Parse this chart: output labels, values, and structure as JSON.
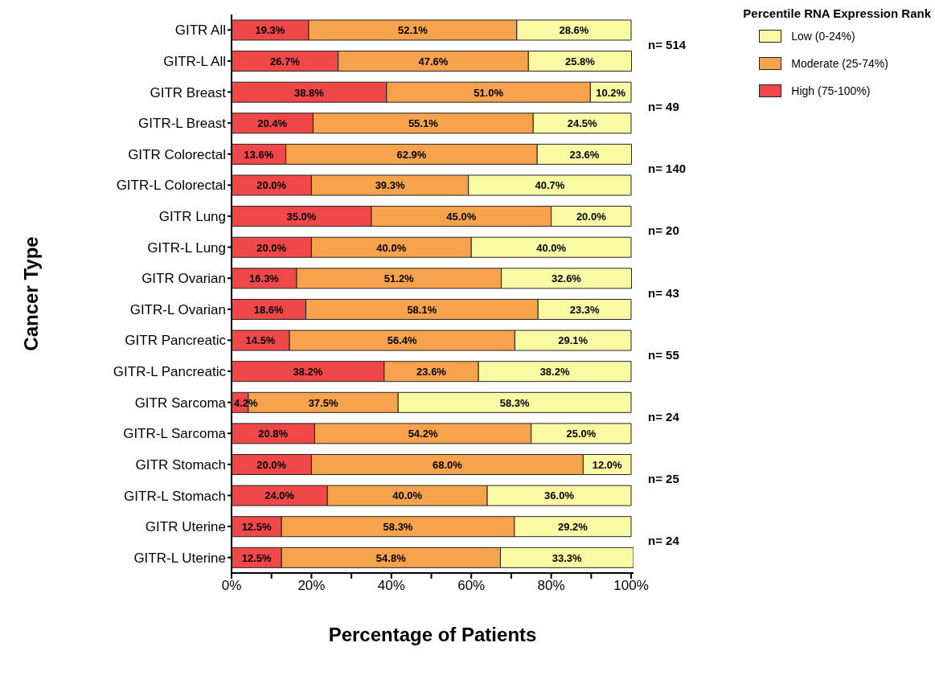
{
  "chart_data": {
    "type": "bar",
    "orientation": "horizontal",
    "stacked": true,
    "xlabel": "Percentage of Patients",
    "ylabel": "Cancer Type",
    "legend_title": "Percentile RNA Expression Rank",
    "legend": "top right",
    "categories": [
      "GITR All",
      "GITR-L All",
      "GITR Breast",
      "GITR-L Breast",
      "GITR Colorectal",
      "GITR-L Colorectal",
      "GITR Lung",
      "GITR-L Lung",
      "GITR Ovarian",
      "GITR-L Ovarian",
      "GITR Pancreatic",
      "GITR-L Pancreatic",
      "GITR Sarcoma",
      "GITR-L Sarcoma",
      "GITR Stomach",
      "GITR-L Stomach",
      "GITR Uterine",
      "GITR-L Uterine"
    ],
    "xlim": [
      0,
      100.6
    ],
    "xticks": [
      {
        "value": 0,
        "label": "0%"
      },
      {
        "value": 10,
        "label": null
      },
      {
        "value": 20,
        "label": "20%"
      },
      {
        "value": 30,
        "label": null
      },
      {
        "value": 40,
        "label": "40%"
      },
      {
        "value": 50,
        "label": null
      },
      {
        "value": 60,
        "label": "60%"
      },
      {
        "value": 70,
        "label": null
      },
      {
        "value": 80,
        "label": "80%"
      },
      {
        "value": 90,
        "label": null
      },
      {
        "value": 100,
        "label": "100%"
      }
    ],
    "series": [
      {
        "name": "High (75-100%)",
        "color": "#f04848",
        "values": [
          19.3,
          26.7,
          38.8,
          20.4,
          13.6,
          20.0,
          35.0,
          20.0,
          16.3,
          18.6,
          14.5,
          38.2,
          4.2,
          20.8,
          20.0,
          24.0,
          12.5,
          12.5
        ],
        "value_labels": [
          "19.3%",
          "26.7%",
          "38.8%",
          "20.4%",
          "13.6%",
          "20.0%",
          "35.0%",
          "20.0%",
          "16.3%",
          "18.6%",
          "14.5%",
          "38.2%",
          "4.2%",
          "20.8%",
          "20.0%",
          "24.0%",
          "12.5%",
          "12.5%"
        ]
      },
      {
        "name": "Moderate (25-74%)",
        "color": "#f7a24c",
        "values": [
          52.1,
          47.6,
          51.0,
          55.1,
          62.9,
          39.3,
          45.0,
          40.0,
          51.2,
          58.1,
          56.4,
          23.6,
          37.5,
          54.2,
          68.0,
          40.0,
          58.3,
          54.8
        ],
        "value_labels": [
          "52.1%",
          "47.6%",
          "51.0%",
          "55.1%",
          "62.9%",
          "39.3%",
          "45.0%",
          "40.0%",
          "51.2%",
          "58.1%",
          "56.4%",
          "23.6%",
          "37.5%",
          "54.2%",
          "68.0%",
          "40.0%",
          "58.3%",
          "54.8%"
        ]
      },
      {
        "name": "Low (0-24%)",
        "color": "#fafaa4",
        "values": [
          28.6,
          25.8,
          10.2,
          24.5,
          23.6,
          40.7,
          20.0,
          40.0,
          32.6,
          23.3,
          29.1,
          38.2,
          58.3,
          25.0,
          12.0,
          36.0,
          29.2,
          33.3
        ],
        "value_labels": [
          "28.6%",
          "25.8%",
          "10.2%",
          "24.5%",
          "23.6%",
          "40.7%",
          "20.0%",
          "40.0%",
          "32.6%",
          "23.3%",
          "29.1%",
          "38.2%",
          "58.3%",
          "25.0%",
          "12.0%",
          "36.0%",
          "29.2%",
          "33.3%"
        ]
      }
    ],
    "annotations": [
      "n= 514",
      "n= 49",
      "n= 140",
      "n= 20",
      "n= 43",
      "n= 55",
      "n= 24",
      "n= 25",
      "n= 24"
    ]
  }
}
